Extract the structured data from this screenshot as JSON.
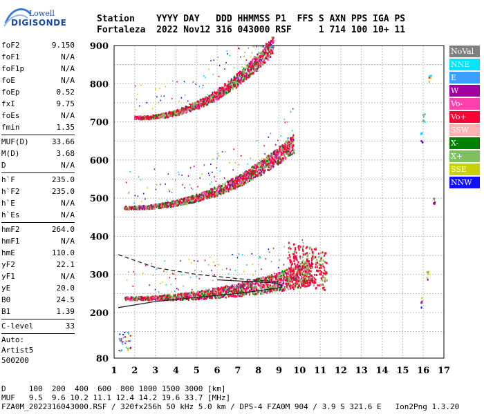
{
  "logo": {
    "top": "Lowell",
    "main": "DIGISONDE"
  },
  "header": {
    "line1": "Station    YYYY DAY   DDD HHMMSS P1  FFS S AXN PPS IGA PS",
    "line2": "Fortaleza  2022 Nov12 316 043000 RSF     1 714 100 10+ 11"
  },
  "params": [
    {
      "label": "foF2",
      "value": "9.150"
    },
    {
      "label": "foF1",
      "value": "N/A"
    },
    {
      "label": "foF1p",
      "value": "N/A"
    },
    {
      "label": "foE",
      "value": "N/A"
    },
    {
      "label": "foEp",
      "value": "0.52"
    },
    {
      "label": "fxI",
      "value": "9.75"
    },
    {
      "label": "foEs",
      "value": "N/A"
    },
    {
      "label": "fmin",
      "value": "1.35",
      "sep": true
    },
    {
      "label": "MUF(D)",
      "value": "33.66"
    },
    {
      "label": "M(D)",
      "value": "3.68"
    },
    {
      "label": "D",
      "value": "N/A",
      "sep": true
    },
    {
      "label": "h`F",
      "value": "235.0"
    },
    {
      "label": "h`F2",
      "value": "235.0"
    },
    {
      "label": "h`E",
      "value": "N/A"
    },
    {
      "label": "h`Es",
      "value": "N/A",
      "sep": true
    },
    {
      "label": "hmF2",
      "value": "264.0"
    },
    {
      "label": "hmF1",
      "value": "N/A"
    },
    {
      "label": "hmE",
      "value": "110.0"
    },
    {
      "label": "yF2",
      "value": "22.1"
    },
    {
      "label": "yF1",
      "value": "N/A"
    },
    {
      "label": "yE",
      "value": "20.0"
    },
    {
      "label": "B0",
      "value": "24.5"
    },
    {
      "label": "B1",
      "value": "1.39",
      "sep": true
    },
    {
      "label": "C-level",
      "value": "33",
      "sep": true
    }
  ],
  "auto": [
    "Auto:",
    "Artist5",
    "500200"
  ],
  "legend": [
    {
      "label": "NoVal",
      "color": "#808080"
    },
    {
      "label": "NNE",
      "color": "#00e5ff"
    },
    {
      "label": "E",
      "color": "#3aa0ff"
    },
    {
      "label": "W",
      "color": "#a000a0"
    },
    {
      "label": "Vo-",
      "color": "#ff40b0"
    },
    {
      "label": "Vo+",
      "color": "#ff0033"
    },
    {
      "label": "SSW",
      "color": "#ffb0b0"
    },
    {
      "label": "X-",
      "color": "#008000"
    },
    {
      "label": "X+",
      "color": "#80c060"
    },
    {
      "label": "SSE",
      "color": "#c8d000"
    },
    {
      "label": "NNW",
      "color": "#1010ff"
    }
  ],
  "chart_data": {
    "type": "scatter",
    "title": "",
    "xlabel": "",
    "ylabel": "",
    "xlim": [
      1,
      17
    ],
    "ylim": [
      80,
      900
    ],
    "x_ticks": [
      1,
      2,
      3,
      4,
      5,
      6,
      7,
      8,
      9,
      10,
      11,
      12,
      13,
      14,
      15,
      16,
      17
    ],
    "y_ticks": [
      80,
      200,
      300,
      400,
      500,
      600,
      700,
      800,
      900
    ],
    "grid": true,
    "traces": [
      {
        "name": "F2 1st hop",
        "f_start": 1.5,
        "f_end": 10.6,
        "h0": 238,
        "h_end": 300,
        "rise": "exp"
      },
      {
        "name": "F2 2nd hop",
        "f_start": 1.5,
        "f_end": 9.7,
        "h0": 476,
        "h_end": 640,
        "rise": "exp"
      },
      {
        "name": "F2 3rd hop",
        "f_start": 2.0,
        "f_end": 8.7,
        "h0": 712,
        "h_end": 900,
        "rise": "exp"
      }
    ],
    "profile_solid": [
      [
        1.2,
        213
      ],
      [
        3,
        229
      ],
      [
        5,
        240
      ],
      [
        7,
        250
      ],
      [
        8.4,
        260
      ],
      [
        9.1,
        266
      ],
      [
        9.15,
        270
      ],
      [
        8.9,
        277
      ],
      [
        8.1,
        280
      ],
      [
        7,
        283
      ],
      [
        6,
        286
      ]
    ],
    "profile_dashed": [
      [
        1.2,
        352
      ],
      [
        3,
        318
      ],
      [
        5,
        300
      ],
      [
        7,
        289
      ],
      [
        8.4,
        283
      ],
      [
        9.0,
        280
      ]
    ],
    "low_echoes": {
      "f_start": 1.2,
      "f_end": 1.8,
      "h": [
        100,
        150
      ]
    },
    "right_echoes": [
      [
        15.9,
        660
      ],
      [
        15.9,
        228
      ],
      [
        16.2,
        300
      ],
      [
        16.5,
        500
      ],
      [
        16.3,
        820
      ],
      [
        16.0,
        710
      ]
    ]
  },
  "footer": {
    "line1": "D     100  200  400  600  800 1000 1500 3000 [km]",
    "line2": "MUF   9.5  9.6 10.2 11.1 12.4 14.2 19.6 33.7 [MHz]",
    "line3": "FZA0M_2022316043000.RSF / 320fx256h 50 kHz 5.0 km / DPS-4 FZA0M 904 / 3.9 S 321.6 E   Ion2Png 1.3.20"
  }
}
